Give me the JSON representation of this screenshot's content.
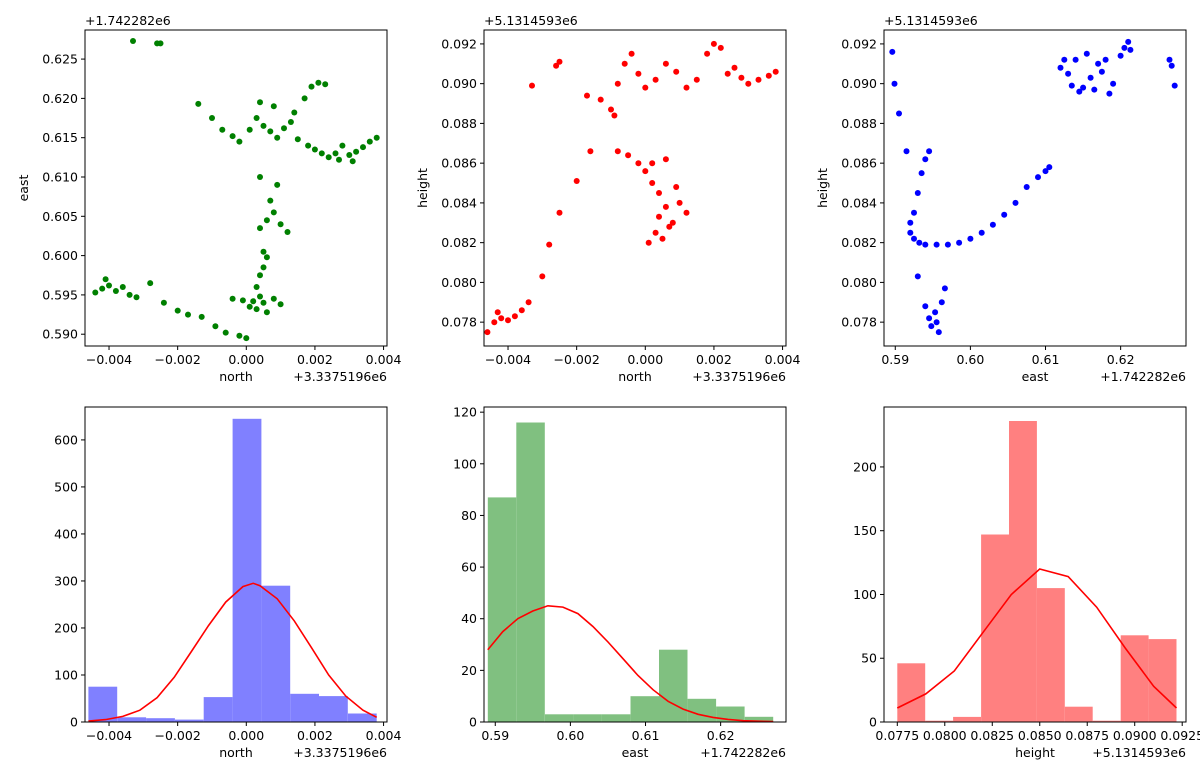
{
  "chart_data": [
    {
      "type": "scatter",
      "color": "#008000",
      "xlabel": "north",
      "ylabel": "east",
      "x_offset": "+3.3375196e6",
      "y_offset": "+1.742282e6",
      "xlim": [
        -0.0047,
        0.0041
      ],
      "ylim": [
        0.5885,
        0.6287
      ],
      "xticks": [
        -0.004,
        -0.002,
        0.0,
        0.002,
        0.004
      ],
      "xtick_labels": [
        "−0.004",
        "−0.002",
        "0.000",
        "0.002",
        "0.004"
      ],
      "yticks": [
        0.59,
        0.595,
        0.6,
        0.605,
        0.61,
        0.615,
        0.62,
        0.625
      ],
      "ytick_labels": [
        "0.590",
        "0.595",
        "0.600",
        "0.605",
        "0.610",
        "0.615",
        "0.620",
        "0.625"
      ],
      "points": [
        [
          -0.0033,
          0.6273
        ],
        [
          -0.0026,
          0.627
        ],
        [
          -0.0025,
          0.627
        ],
        [
          -0.0044,
          0.5953
        ],
        [
          -0.0042,
          0.5958
        ],
        [
          -0.004,
          0.5962
        ],
        [
          -0.0038,
          0.5955
        ],
        [
          -0.0036,
          0.596
        ],
        [
          -0.0034,
          0.595
        ],
        [
          -0.0032,
          0.5947
        ],
        [
          -0.0028,
          0.5965
        ],
        [
          -0.0041,
          0.597
        ],
        [
          -0.0024,
          0.594
        ],
        [
          -0.002,
          0.593
        ],
        [
          -0.0017,
          0.5925
        ],
        [
          -0.0013,
          0.5922
        ],
        [
          -0.0009,
          0.591
        ],
        [
          -0.0006,
          0.5902
        ],
        [
          -0.0002,
          0.5898
        ],
        [
          0.0,
          0.5895
        ],
        [
          -0.0004,
          0.5945
        ],
        [
          -0.0001,
          0.5943
        ],
        [
          0.0002,
          0.5942
        ],
        [
          0.0005,
          0.594
        ],
        [
          0.0008,
          0.5945
        ],
        [
          0.001,
          0.5938
        ],
        [
          0.0003,
          0.5932
        ],
        [
          0.0006,
          0.5928
        ],
        [
          0.0001,
          0.5935
        ],
        [
          0.0004,
          0.5948
        ],
        [
          0.0003,
          0.596
        ],
        [
          0.0004,
          0.5975
        ],
        [
          0.0005,
          0.5985
        ],
        [
          0.0006,
          0.5998
        ],
        [
          0.0005,
          0.6005
        ],
        [
          0.0004,
          0.6035
        ],
        [
          0.0006,
          0.6045
        ],
        [
          0.0008,
          0.6055
        ],
        [
          0.001,
          0.604
        ],
        [
          0.0012,
          0.603
        ],
        [
          0.0007,
          0.607
        ],
        [
          0.0009,
          0.609
        ],
        [
          0.0004,
          0.61
        ],
        [
          -0.0014,
          0.6193
        ],
        [
          -0.001,
          0.6175
        ],
        [
          -0.0007,
          0.616
        ],
        [
          -0.0004,
          0.6152
        ],
        [
          -0.0002,
          0.6145
        ],
        [
          0.0001,
          0.616
        ],
        [
          0.0003,
          0.6175
        ],
        [
          0.0005,
          0.6165
        ],
        [
          0.0007,
          0.6158
        ],
        [
          0.0009,
          0.615
        ],
        [
          0.0011,
          0.6162
        ],
        [
          0.0013,
          0.617
        ],
        [
          0.0004,
          0.6195
        ],
        [
          0.0008,
          0.619
        ],
        [
          0.0014,
          0.6182
        ],
        [
          0.0017,
          0.62
        ],
        [
          0.0019,
          0.6215
        ],
        [
          0.0021,
          0.622
        ],
        [
          0.0023,
          0.6218
        ],
        [
          0.0015,
          0.6148
        ],
        [
          0.0018,
          0.614
        ],
        [
          0.002,
          0.6135
        ],
        [
          0.0022,
          0.613
        ],
        [
          0.0024,
          0.6125
        ],
        [
          0.0026,
          0.613
        ],
        [
          0.0028,
          0.614
        ],
        [
          0.003,
          0.6128
        ],
        [
          0.0032,
          0.6132
        ],
        [
          0.0034,
          0.6138
        ],
        [
          0.0036,
          0.6145
        ],
        [
          0.0038,
          0.615
        ],
        [
          0.0027,
          0.6122
        ],
        [
          0.0031,
          0.612
        ]
      ]
    },
    {
      "type": "scatter",
      "color": "#ff0000",
      "xlabel": "north",
      "ylabel": "height",
      "x_offset": "+3.3375196e6",
      "y_offset": "+5.1314593e6",
      "xlim": [
        -0.0047,
        0.0041
      ],
      "ylim": [
        0.0768,
        0.0927
      ],
      "xticks": [
        -0.004,
        -0.002,
        0.0,
        0.002,
        0.004
      ],
      "xtick_labels": [
        "−0.004",
        "−0.002",
        "0.000",
        "0.002",
        "0.004"
      ],
      "yticks": [
        0.078,
        0.08,
        0.082,
        0.084,
        0.086,
        0.088,
        0.09,
        0.092
      ],
      "ytick_labels": [
        "0.078",
        "0.080",
        "0.082",
        "0.084",
        "0.086",
        "0.088",
        "0.090",
        "0.092"
      ],
      "points": [
        [
          -0.0046,
          0.0775
        ],
        [
          -0.0044,
          0.078
        ],
        [
          -0.0043,
          0.0785
        ],
        [
          -0.0042,
          0.0782
        ],
        [
          -0.004,
          0.0781
        ],
        [
          -0.0038,
          0.0783
        ],
        [
          -0.0036,
          0.0786
        ],
        [
          -0.0034,
          0.079
        ],
        [
          -0.003,
          0.0803
        ],
        [
          -0.0028,
          0.0819
        ],
        [
          -0.0025,
          0.0835
        ],
        [
          -0.002,
          0.0851
        ],
        [
          -0.0016,
          0.0866
        ],
        [
          -0.0033,
          0.0899
        ],
        [
          -0.0026,
          0.0909
        ],
        [
          -0.0025,
          0.0911
        ],
        [
          -0.0017,
          0.0894
        ],
        [
          -0.0013,
          0.0892
        ],
        [
          -0.001,
          0.0887
        ],
        [
          -0.0009,
          0.0884
        ],
        [
          -0.0008,
          0.09
        ],
        [
          -0.0006,
          0.091
        ],
        [
          -0.0004,
          0.0915
        ],
        [
          -0.0002,
          0.0905
        ],
        [
          0.0,
          0.0898
        ],
        [
          0.0003,
          0.0902
        ],
        [
          0.0006,
          0.091
        ],
        [
          0.0009,
          0.0906
        ],
        [
          0.0012,
          0.0898
        ],
        [
          0.0015,
          0.0902
        ],
        [
          0.0018,
          0.0915
        ],
        [
          0.002,
          0.092
        ],
        [
          0.0022,
          0.0918
        ],
        [
          0.0024,
          0.0905
        ],
        [
          0.0026,
          0.0908
        ],
        [
          0.0028,
          0.0903
        ],
        [
          0.003,
          0.09
        ],
        [
          0.0033,
          0.0902
        ],
        [
          0.0036,
          0.0904
        ],
        [
          0.0038,
          0.0906
        ],
        [
          -0.0008,
          0.0866
        ],
        [
          -0.0005,
          0.0864
        ],
        [
          -0.0002,
          0.086
        ],
        [
          0.0,
          0.0856
        ],
        [
          0.0002,
          0.085
        ],
        [
          0.0004,
          0.0845
        ],
        [
          0.0006,
          0.0838
        ],
        [
          0.0008,
          0.083
        ],
        [
          0.001,
          0.084
        ],
        [
          0.0012,
          0.0835
        ],
        [
          0.0003,
          0.0825
        ],
        [
          0.0005,
          0.0822
        ],
        [
          0.0001,
          0.082
        ],
        [
          0.0007,
          0.0828
        ],
        [
          0.0002,
          0.086
        ],
        [
          0.0006,
          0.0862
        ],
        [
          0.0009,
          0.0848
        ],
        [
          0.0004,
          0.0833
        ]
      ]
    },
    {
      "type": "scatter",
      "color": "#0000ff",
      "xlabel": "east",
      "ylabel": "height",
      "x_offset": "+1.742282e6",
      "y_offset": "+5.1314593e6",
      "xlim": [
        0.5885,
        0.6287
      ],
      "ylim": [
        0.0768,
        0.0927
      ],
      "xticks": [
        0.59,
        0.6,
        0.61,
        0.62
      ],
      "xtick_labels": [
        "0.59",
        "0.60",
        "0.61",
        "0.62"
      ],
      "yticks": [
        0.078,
        0.08,
        0.082,
        0.084,
        0.086,
        0.088,
        0.09,
        0.092
      ],
      "ytick_labels": [
        "0.078",
        "0.080",
        "0.082",
        "0.084",
        "0.086",
        "0.088",
        "0.090",
        "0.092"
      ],
      "points": [
        [
          0.5896,
          0.0916
        ],
        [
          0.5899,
          0.09
        ],
        [
          0.5905,
          0.0885
        ],
        [
          0.5915,
          0.0866
        ],
        [
          0.593,
          0.0803
        ],
        [
          0.594,
          0.0788
        ],
        [
          0.5945,
          0.0782
        ],
        [
          0.5948,
          0.0778
        ],
        [
          0.5953,
          0.0785
        ],
        [
          0.5955,
          0.078
        ],
        [
          0.5958,
          0.0775
        ],
        [
          0.5962,
          0.079
        ],
        [
          0.5966,
          0.0797
        ],
        [
          0.592,
          0.0825
        ],
        [
          0.592,
          0.083
        ],
        [
          0.5925,
          0.0835
        ],
        [
          0.593,
          0.0845
        ],
        [
          0.5935,
          0.0855
        ],
        [
          0.594,
          0.0862
        ],
        [
          0.5945,
          0.0866
        ],
        [
          0.5925,
          0.0822
        ],
        [
          0.5932,
          0.082
        ],
        [
          0.594,
          0.0819
        ],
        [
          0.5955,
          0.0819
        ],
        [
          0.597,
          0.0819
        ],
        [
          0.5985,
          0.082
        ],
        [
          0.6,
          0.0822
        ],
        [
          0.6015,
          0.0825
        ],
        [
          0.603,
          0.0829
        ],
        [
          0.6045,
          0.0834
        ],
        [
          0.606,
          0.084
        ],
        [
          0.6075,
          0.0848
        ],
        [
          0.609,
          0.0853
        ],
        [
          0.61,
          0.0856
        ],
        [
          0.6105,
          0.0858
        ],
        [
          0.612,
          0.0908
        ],
        [
          0.6125,
          0.0912
        ],
        [
          0.613,
          0.0905
        ],
        [
          0.6135,
          0.0899
        ],
        [
          0.614,
          0.0912
        ],
        [
          0.6145,
          0.0896
        ],
        [
          0.615,
          0.0898
        ],
        [
          0.6155,
          0.0915
        ],
        [
          0.616,
          0.0903
        ],
        [
          0.6165,
          0.0897
        ],
        [
          0.617,
          0.091
        ],
        [
          0.6175,
          0.0906
        ],
        [
          0.618,
          0.0912
        ],
        [
          0.6185,
          0.0895
        ],
        [
          0.619,
          0.09
        ],
        [
          0.62,
          0.0914
        ],
        [
          0.6205,
          0.0918
        ],
        [
          0.621,
          0.0921
        ],
        [
          0.6213,
          0.0917
        ],
        [
          0.6265,
          0.0912
        ],
        [
          0.6268,
          0.0909
        ],
        [
          0.6272,
          0.0899
        ]
      ]
    },
    {
      "type": "histogram",
      "bar_color": "#8080ff",
      "line_color": "#ff0000",
      "xlabel": "north",
      "ylabel": "",
      "x_offset": "+3.3375196e6",
      "xlim": [
        -0.0047,
        0.0041
      ],
      "ylim": [
        0,
        670
      ],
      "xticks": [
        -0.004,
        -0.002,
        0.0,
        0.002,
        0.004
      ],
      "xtick_labels": [
        "−0.004",
        "−0.002",
        "0.000",
        "0.002",
        "0.004"
      ],
      "yticks": [
        0,
        100,
        200,
        300,
        400,
        500,
        600
      ],
      "ytick_labels": [
        "0",
        "100",
        "200",
        "300",
        "400",
        "500",
        "600"
      ],
      "bin_edges": [
        -0.0046,
        -0.00376,
        -0.00292,
        -0.00208,
        -0.00124,
        -0.0004,
        0.00044,
        0.00128,
        0.00212,
        0.00296,
        0.0038
      ],
      "counts": [
        75,
        10,
        8,
        5,
        53,
        645,
        290,
        60,
        55,
        18
      ],
      "curve_x": [
        -0.0046,
        -0.0041,
        -0.0036,
        -0.0031,
        -0.0026,
        -0.0021,
        -0.0016,
        -0.0011,
        -0.0006,
        -0.0001,
        0.0002,
        0.0004,
        0.0009,
        0.0014,
        0.0019,
        0.0024,
        0.0029,
        0.0034,
        0.0038
      ],
      "curve_y": [
        2,
        5,
        12,
        25,
        52,
        95,
        150,
        205,
        255,
        288,
        295,
        290,
        262,
        215,
        158,
        100,
        55,
        25,
        10
      ]
    },
    {
      "type": "histogram",
      "bar_color": "#80c080",
      "line_color": "#ff0000",
      "xlabel": "east",
      "ylabel": "",
      "x_offset": "+1.742282e6",
      "xlim": [
        0.5885,
        0.6287
      ],
      "ylim": [
        0,
        122
      ],
      "xticks": [
        0.59,
        0.6,
        0.61,
        0.62
      ],
      "xtick_labels": [
        "0.59",
        "0.60",
        "0.61",
        "0.62"
      ],
      "yticks": [
        0,
        20,
        40,
        60,
        80,
        100,
        120
      ],
      "ytick_labels": [
        "0",
        "20",
        "40",
        "60",
        "80",
        "100",
        "120"
      ],
      "bin_edges": [
        0.589,
        0.5928,
        0.5966,
        0.6004,
        0.6042,
        0.608,
        0.6118,
        0.6156,
        0.6194,
        0.6232,
        0.627
      ],
      "counts": [
        87,
        116,
        3,
        3,
        3,
        10,
        28,
        9,
        6,
        2
      ],
      "curve_x": [
        0.589,
        0.591,
        0.593,
        0.595,
        0.597,
        0.599,
        0.601,
        0.603,
        0.605,
        0.607,
        0.609,
        0.611,
        0.613,
        0.615,
        0.617,
        0.619,
        0.621,
        0.623,
        0.625,
        0.627
      ],
      "curve_y": [
        28,
        35,
        40,
        43,
        45,
        44.5,
        42,
        37,
        31,
        24.5,
        18,
        12.5,
        8,
        5,
        3,
        1.8,
        1,
        0.5,
        0.3,
        0.2
      ]
    },
    {
      "type": "histogram",
      "bar_color": "#ff8080",
      "line_color": "#ff0000",
      "xlabel": "height",
      "ylabel": "",
      "x_offset": "+5.1314593e6",
      "xlim": [
        0.0768,
        0.0927
      ],
      "ylim": [
        0,
        247
      ],
      "xticks": [
        0.0775,
        0.08,
        0.0825,
        0.085,
        0.0875,
        0.09,
        0.0925
      ],
      "xtick_labels": [
        "0.0775",
        "0.0800",
        "0.0825",
        "0.0850",
        "0.0875",
        "0.0900",
        "0.0925"
      ],
      "yticks": [
        0,
        50,
        100,
        150,
        200
      ],
      "ytick_labels": [
        "0",
        "50",
        "100",
        "150",
        "200"
      ],
      "bin_edges": [
        0.0775,
        0.07897,
        0.08044,
        0.08191,
        0.08338,
        0.08485,
        0.08632,
        0.08779,
        0.08926,
        0.09073,
        0.0922
      ],
      "counts": [
        46,
        1,
        4,
        147,
        236,
        105,
        12,
        1,
        68,
        65
      ],
      "curve_x": [
        0.0775,
        0.079,
        0.0805,
        0.082,
        0.0835,
        0.085,
        0.0865,
        0.088,
        0.0895,
        0.091,
        0.0922
      ],
      "curve_y": [
        11,
        22,
        40,
        70,
        100,
        120,
        114,
        90,
        58,
        28,
        11
      ]
    }
  ]
}
